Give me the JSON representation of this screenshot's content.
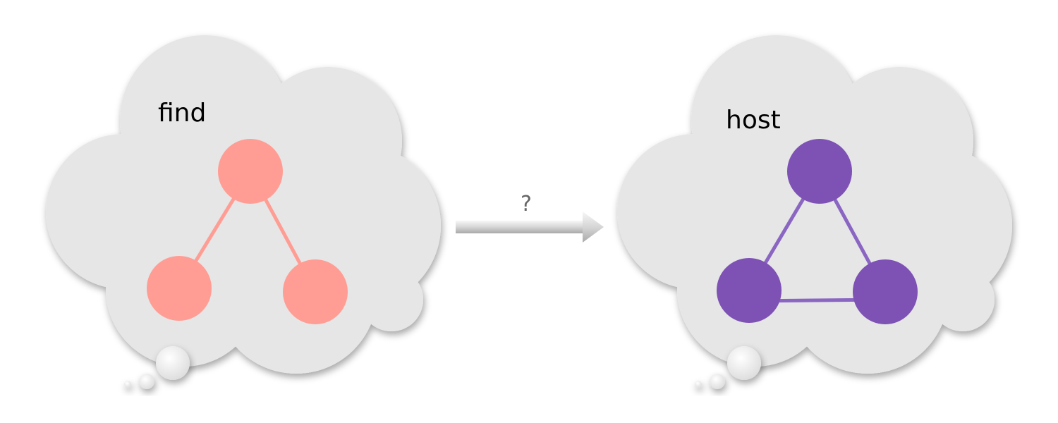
{
  "left_cloud": {
    "label": "find",
    "node_color": "#FF9D94",
    "edge_color": "#FF9D94",
    "nodes": [
      "top",
      "bottom-left",
      "bottom-right"
    ],
    "edges": [
      [
        "top",
        "bottom-left"
      ],
      [
        "top",
        "bottom-right"
      ]
    ]
  },
  "right_cloud": {
    "label": "host",
    "node_color": "#7E51B5",
    "edge_color": "#8A66C2",
    "nodes": [
      "top",
      "bottom-left",
      "bottom-right"
    ],
    "edges": [
      [
        "top",
        "bottom-left"
      ],
      [
        "top",
        "bottom-right"
      ],
      [
        "bottom-left",
        "bottom-right"
      ]
    ]
  },
  "arrow": {
    "label": "?"
  },
  "cloud_fill": "#E6E6E6"
}
